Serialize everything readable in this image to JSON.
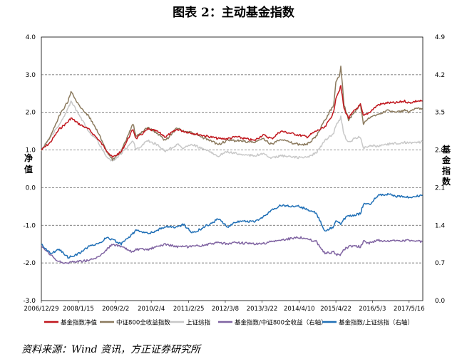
{
  "title": "图表 2：主动基金指数",
  "source": "资料来源：Wind 资讯，方正证券研究所",
  "chart_data": {
    "type": "line",
    "left_axis": {
      "label": "净值",
      "ticks": [
        {
          "value": 4.0,
          "label": "4.0"
        },
        {
          "value": 3.0,
          "label": "3.0"
        },
        {
          "value": 2.0,
          "label": "2.0"
        },
        {
          "value": 1.0,
          "label": "1.0"
        },
        {
          "value": 0.0,
          "label": "0.0"
        },
        {
          "value": -1.0,
          "label": "-1.0"
        },
        {
          "value": -2.0,
          "label": "-2.0"
        },
        {
          "value": -3.0,
          "label": "-3.0"
        }
      ],
      "range": [
        -3.0,
        4.0
      ]
    },
    "right_axis": {
      "label": "基金指数",
      "ticks": [
        {
          "value": 4.9,
          "label": "4.9"
        },
        {
          "value": 4.2,
          "label": "4.2"
        },
        {
          "value": 3.5,
          "label": "3.5"
        },
        {
          "value": 2.8,
          "label": "2.8"
        },
        {
          "value": 2.1,
          "label": "2.1"
        },
        {
          "value": 1.4,
          "label": "1.4"
        },
        {
          "value": 0.7,
          "label": "0.7"
        },
        {
          "value": 0.0,
          "label": "0.0"
        }
      ],
      "range": [
        0.0,
        4.9
      ]
    },
    "x_ticks": [
      "2006/12/29",
      "2008/1/15",
      "2009/2/2",
      "2010/2/4",
      "2011/2/25",
      "2012/3/8",
      "2013/3/22",
      "2014/4/10",
      "2015/4/22",
      "2016/5/3",
      "2017/5/16"
    ],
    "gridlines": [
      3.0,
      2.0,
      1.0,
      0.0,
      -1.0,
      -2.0
    ],
    "series": [
      {
        "name": "基金指数净值",
        "axis": "left",
        "color": "#c0161d",
        "x": [
          "2006/12/29",
          "2007/3/31",
          "2007/6/30",
          "2007/9/30",
          "2007/10/31",
          "2008/1/15",
          "2008/4/30",
          "2008/7/31",
          "2008/10/31",
          "2008/12/31",
          "2009/3/31",
          "2009/7/31",
          "2009/8/31",
          "2009/12/31",
          "2010/3/31",
          "2010/6/30",
          "2010/10/31",
          "2010/12/31",
          "2011/3/31",
          "2011/6/30",
          "2011/12/31",
          "2012/3/31",
          "2012/6/30",
          "2012/12/31",
          "2013/3/31",
          "2013/6/30",
          "2013/9/30",
          "2013/12/31",
          "2014/3/31",
          "2014/6/30",
          "2014/9/30",
          "2014/12/31",
          "2015/3/31",
          "2015/4/22",
          "2015/5/31",
          "2015/6/12",
          "2015/7/15",
          "2015/8/31",
          "2015/10/31",
          "2015/12/31",
          "2016/1/31",
          "2016/3/31",
          "2016/6/30",
          "2016/9/30",
          "2016/12/31",
          "2017/3/31",
          "2017/5/16",
          "2017/7/31",
          "2017/9/30"
        ],
        "values": [
          1.0,
          1.2,
          1.55,
          1.75,
          1.85,
          1.7,
          1.55,
          1.3,
          1.0,
          0.8,
          0.95,
          1.55,
          1.3,
          1.55,
          1.5,
          1.35,
          1.55,
          1.5,
          1.45,
          1.4,
          1.3,
          1.3,
          1.35,
          1.25,
          1.4,
          1.3,
          1.5,
          1.45,
          1.4,
          1.35,
          1.5,
          1.6,
          2.0,
          2.4,
          2.6,
          2.7,
          2.1,
          1.85,
          2.05,
          2.2,
          1.9,
          2.0,
          2.2,
          2.25,
          2.25,
          2.3,
          2.25,
          2.3,
          2.3
        ]
      },
      {
        "name": "中证800全收益指数",
        "axis": "left",
        "color": "#8b7a5e",
        "x": [
          "2006/12/29",
          "2007/3/31",
          "2007/6/30",
          "2007/9/30",
          "2007/10/31",
          "2008/1/15",
          "2008/4/30",
          "2008/7/31",
          "2008/10/31",
          "2008/12/31",
          "2009/3/31",
          "2009/7/31",
          "2009/8/31",
          "2009/12/31",
          "2010/3/31",
          "2010/6/30",
          "2010/10/31",
          "2010/12/31",
          "2011/3/31",
          "2011/6/30",
          "2011/12/31",
          "2012/3/31",
          "2012/6/30",
          "2012/12/31",
          "2013/3/31",
          "2013/6/30",
          "2013/9/30",
          "2013/12/31",
          "2014/3/31",
          "2014/6/30",
          "2014/9/30",
          "2014/12/31",
          "2015/3/31",
          "2015/4/22",
          "2015/5/31",
          "2015/6/12",
          "2015/7/15",
          "2015/8/31",
          "2015/10/31",
          "2015/12/31",
          "2016/1/31",
          "2016/3/31",
          "2016/6/30",
          "2016/9/30",
          "2016/12/31",
          "2017/3/31",
          "2017/5/16",
          "2017/7/31",
          "2017/9/30"
        ],
        "values": [
          1.0,
          1.35,
          1.9,
          2.3,
          2.55,
          2.2,
          1.9,
          1.5,
          0.95,
          0.75,
          0.95,
          1.7,
          1.35,
          1.6,
          1.45,
          1.25,
          1.6,
          1.5,
          1.45,
          1.35,
          1.15,
          1.25,
          1.25,
          1.2,
          1.3,
          1.15,
          1.3,
          1.2,
          1.15,
          1.15,
          1.35,
          1.8,
          2.2,
          2.8,
          3.0,
          3.25,
          2.2,
          1.8,
          2.0,
          2.2,
          1.7,
          1.85,
          1.95,
          2.05,
          2.0,
          2.05,
          2.0,
          2.1,
          2.1
        ]
      },
      {
        "name": "上证综指",
        "axis": "left",
        "color": "#c8c8c8",
        "x": [
          "2006/12/29",
          "2007/3/31",
          "2007/6/30",
          "2007/9/30",
          "2007/10/31",
          "2008/1/15",
          "2008/4/30",
          "2008/7/31",
          "2008/10/31",
          "2008/12/31",
          "2009/3/31",
          "2009/7/31",
          "2009/8/31",
          "2009/12/31",
          "2010/3/31",
          "2010/6/30",
          "2010/10/31",
          "2010/12/31",
          "2011/3/31",
          "2011/6/30",
          "2011/12/31",
          "2012/3/31",
          "2012/6/30",
          "2012/12/31",
          "2013/3/31",
          "2013/6/30",
          "2013/9/30",
          "2013/12/31",
          "2014/3/31",
          "2014/6/30",
          "2014/9/30",
          "2014/12/31",
          "2015/3/31",
          "2015/4/22",
          "2015/5/31",
          "2015/6/12",
          "2015/7/15",
          "2015/8/31",
          "2015/10/31",
          "2015/12/31",
          "2016/1/31",
          "2016/3/31",
          "2016/6/30",
          "2016/9/30",
          "2016/12/31",
          "2017/3/31",
          "2017/5/16",
          "2017/7/31",
          "2017/9/30"
        ],
        "values": [
          1.0,
          1.35,
          1.65,
          2.1,
          2.3,
          1.95,
          1.5,
          1.25,
          0.8,
          0.7,
          0.9,
          1.25,
          1.0,
          1.25,
          1.15,
          0.97,
          1.15,
          1.05,
          1.15,
          1.05,
          0.85,
          0.95,
          0.9,
          0.85,
          0.9,
          0.78,
          0.85,
          0.82,
          0.8,
          0.8,
          0.92,
          1.25,
          1.45,
          1.65,
          1.8,
          1.9,
          1.4,
          1.2,
          1.3,
          1.35,
          1.05,
          1.12,
          1.1,
          1.15,
          1.18,
          1.2,
          1.18,
          1.2,
          1.22
        ]
      },
      {
        "name": "基金指数/中证800全收益（右轴）",
        "axis": "right",
        "color": "#8064a2",
        "x": [
          "2006/12/29",
          "2007/3/31",
          "2007/6/30",
          "2007/9/30",
          "2007/10/31",
          "2008/1/15",
          "2008/4/30",
          "2008/7/31",
          "2008/10/31",
          "2008/12/31",
          "2009/3/31",
          "2009/7/31",
          "2009/8/31",
          "2009/12/31",
          "2010/3/31",
          "2010/6/30",
          "2010/10/31",
          "2010/12/31",
          "2011/3/31",
          "2011/6/30",
          "2011/12/31",
          "2012/3/31",
          "2012/6/30",
          "2012/12/31",
          "2013/3/31",
          "2013/6/30",
          "2013/9/30",
          "2013/12/31",
          "2014/3/31",
          "2014/6/30",
          "2014/9/30",
          "2014/12/31",
          "2015/3/31",
          "2015/4/22",
          "2015/5/31",
          "2015/6/12",
          "2015/7/15",
          "2015/8/31",
          "2015/10/31",
          "2015/12/31",
          "2016/1/31",
          "2016/3/31",
          "2016/6/30",
          "2016/9/30",
          "2016/12/31",
          "2017/3/31",
          "2017/5/16",
          "2017/7/31",
          "2017/9/30"
        ],
        "values": [
          1.0,
          0.85,
          0.72,
          0.7,
          0.72,
          0.73,
          0.75,
          0.8,
          0.95,
          1.05,
          1.0,
          0.9,
          0.95,
          0.95,
          1.0,
          1.05,
          1.0,
          1.0,
          1.0,
          1.02,
          1.08,
          1.05,
          1.08,
          1.05,
          1.06,
          1.1,
          1.12,
          1.15,
          1.18,
          1.14,
          1.1,
          0.88,
          0.9,
          0.85,
          0.86,
          0.85,
          0.95,
          1.0,
          1.02,
          1.0,
          1.1,
          1.07,
          1.12,
          1.1,
          1.12,
          1.12,
          1.12,
          1.1,
          1.1
        ]
      },
      {
        "name": "基金指数/上证综指（右轴）",
        "axis": "right",
        "color": "#1f6fb6",
        "x": [
          "2006/12/29",
          "2007/3/31",
          "2007/6/30",
          "2007/9/30",
          "2007/10/31",
          "2008/1/15",
          "2008/4/30",
          "2008/7/31",
          "2008/10/31",
          "2008/12/31",
          "2009/3/31",
          "2009/7/31",
          "2009/8/31",
          "2009/12/31",
          "2010/3/31",
          "2010/6/30",
          "2010/10/31",
          "2010/12/31",
          "2011/3/31",
          "2011/6/30",
          "2011/12/31",
          "2012/3/31",
          "2012/6/30",
          "2012/12/31",
          "2013/3/31",
          "2013/6/30",
          "2013/9/30",
          "2013/12/31",
          "2014/3/31",
          "2014/6/30",
          "2014/9/30",
          "2014/12/31",
          "2015/3/31",
          "2015/4/22",
          "2015/5/31",
          "2015/6/12",
          "2015/7/15",
          "2015/8/31",
          "2015/10/31",
          "2015/12/31",
          "2016/1/31",
          "2016/3/31",
          "2016/6/30",
          "2016/9/30",
          "2016/12/31",
          "2017/3/31",
          "2017/5/16",
          "2017/7/31",
          "2017/9/30"
        ],
        "values": [
          1.05,
          0.88,
          0.95,
          0.8,
          0.82,
          0.87,
          1.0,
          1.05,
          1.17,
          1.14,
          1.05,
          1.25,
          1.3,
          1.25,
          1.3,
          1.38,
          1.36,
          1.42,
          1.26,
          1.33,
          1.52,
          1.37,
          1.47,
          1.47,
          1.55,
          1.68,
          1.78,
          1.76,
          1.75,
          1.7,
          1.63,
          1.29,
          1.38,
          1.48,
          1.46,
          1.42,
          1.51,
          1.58,
          1.59,
          1.62,
          1.8,
          1.78,
          1.96,
          1.98,
          1.94,
          1.94,
          1.92,
          1.94,
          1.96
        ]
      }
    ],
    "legend": {
      "placement": "bottom",
      "items": [
        "基金指数净值",
        "中证800全收益指数",
        "上证综指",
        "基金指数/中证800全收益（右轴）",
        "基金指数/上证综指（右轴）"
      ]
    }
  }
}
